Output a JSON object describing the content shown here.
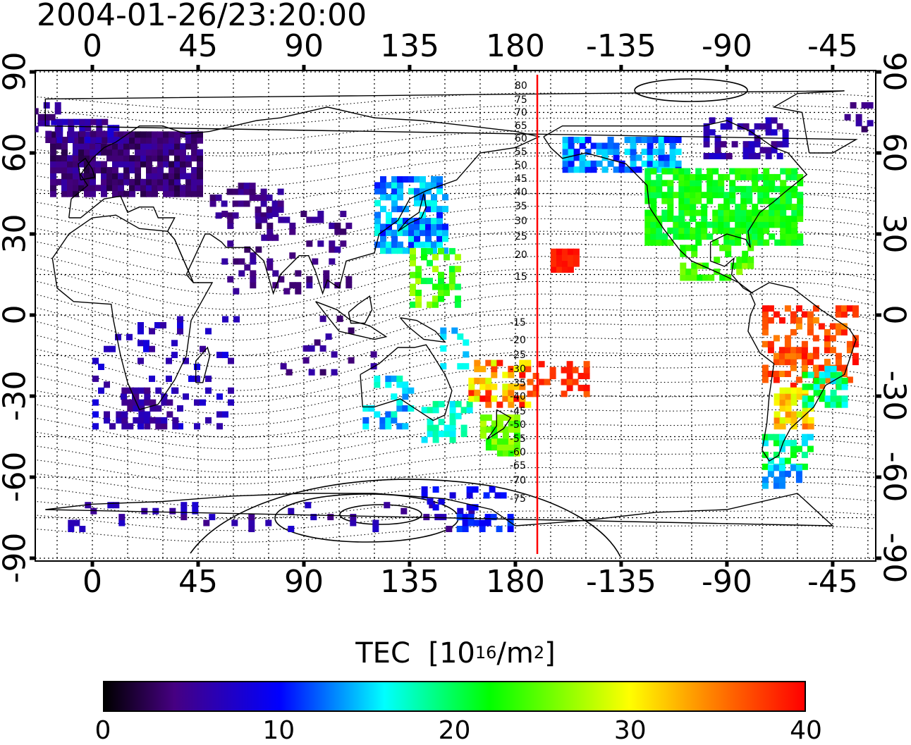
{
  "timestamp": "2004-01-26/23:20:00",
  "longitude_ticks": [
    "0",
    "45",
    "90",
    "135",
    "180",
    "-135",
    "-90",
    "-45"
  ],
  "latitude_ticks": [
    "90",
    "60",
    "30",
    "0",
    "-30",
    "-60",
    "-90"
  ],
  "contour_labels": [
    "80",
    "75",
    "70",
    "65",
    "60",
    "55",
    "50",
    "45",
    "40",
    "35",
    "30",
    "25",
    "20",
    "15",
    "-15",
    "-20",
    "-25",
    "-30",
    "-35",
    "-40",
    "-45",
    "-50",
    "-55",
    "-60",
    "-65",
    "-70",
    "-75"
  ],
  "colorbar": {
    "title": "TEC",
    "unit_base": "10",
    "unit_exp": "16",
    "unit_mid": "/m",
    "unit_exp2": "2",
    "ticks": [
      "0",
      "10",
      "20",
      "30",
      "40"
    ],
    "min": 0,
    "max": 40
  },
  "colors": {
    "boundary_line": "#ff0000",
    "coastline": "#000000"
  }
}
